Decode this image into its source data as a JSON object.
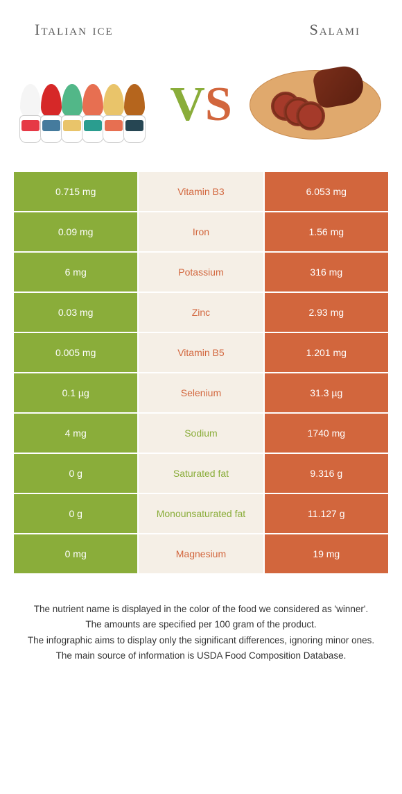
{
  "header": {
    "left_title": "Italian ice",
    "right_title": "Salami",
    "vs_v": "V",
    "vs_s": "S"
  },
  "colors": {
    "green": "#8aad3a",
    "orange": "#d2663d",
    "mid_bg": "#f5efe6",
    "page_bg": "#ffffff"
  },
  "table": {
    "rows": [
      {
        "left": "0.715 mg",
        "label": "Vitamin B3",
        "right": "6.053 mg",
        "winner": "right"
      },
      {
        "left": "0.09 mg",
        "label": "Iron",
        "right": "1.56 mg",
        "winner": "right"
      },
      {
        "left": "6 mg",
        "label": "Potassium",
        "right": "316 mg",
        "winner": "right"
      },
      {
        "left": "0.03 mg",
        "label": "Zinc",
        "right": "2.93 mg",
        "winner": "right"
      },
      {
        "left": "0.005 mg",
        "label": "Vitamin B5",
        "right": "1.201 mg",
        "winner": "right"
      },
      {
        "left": "0.1 µg",
        "label": "Selenium",
        "right": "31.3 µg",
        "winner": "right"
      },
      {
        "left": "4 mg",
        "label": "Sodium",
        "right": "1740 mg",
        "winner": "left"
      },
      {
        "left": "0 g",
        "label": "Saturated fat",
        "right": "9.316 g",
        "winner": "left"
      },
      {
        "left": "0 g",
        "label": "Monounsaturated fat",
        "right": "11.127 g",
        "winner": "left"
      },
      {
        "left": "0 mg",
        "label": "Magnesium",
        "right": "19 mg",
        "winner": "right"
      }
    ]
  },
  "footer": {
    "line1": "The nutrient name is displayed in the color of the food we considered as 'winner'.",
    "line2": "The amounts are specified per 100 gram of the product.",
    "line3": "The infographic aims to display only the significant differences, ignoring minor ones.",
    "line4": "The main source of information is USDA Food Composition Database."
  }
}
